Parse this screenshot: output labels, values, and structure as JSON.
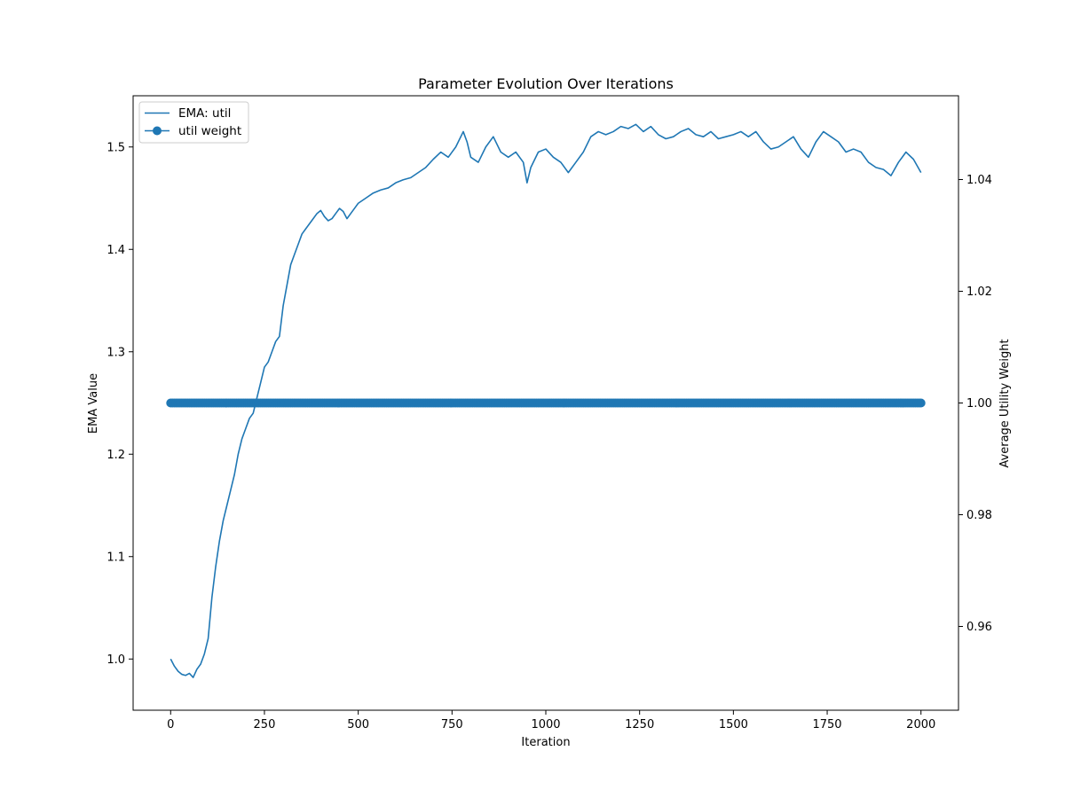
{
  "chart_data": {
    "type": "line",
    "title": "Parameter Evolution Over Iterations",
    "xlabel": "Iteration",
    "ylabel_left": "EMA Value",
    "ylabel_right": "Average Utility Weight",
    "xlim": [
      -100,
      2100
    ],
    "ylim_left": [
      0.95,
      1.55
    ],
    "ylim_right": [
      0.945,
      1.055
    ],
    "x_ticks": [
      0,
      250,
      500,
      750,
      1000,
      1250,
      1500,
      1750,
      2000
    ],
    "y_ticks_left": [
      1.0,
      1.1,
      1.2,
      1.3,
      1.4,
      1.5
    ],
    "y_ticks_right": [
      0.96,
      0.98,
      1.0,
      1.02,
      1.04
    ],
    "y_tick_format_left": 1,
    "y_tick_format_right": 2,
    "grid": false,
    "legend_position": "top-left",
    "series": [
      {
        "name": "EMA: util",
        "axis": "left",
        "style": "line",
        "color": "#1f77b4",
        "x": [
          0,
          10,
          20,
          30,
          40,
          50,
          60,
          70,
          80,
          90,
          100,
          110,
          120,
          130,
          140,
          150,
          160,
          170,
          180,
          190,
          200,
          210,
          220,
          230,
          240,
          250,
          260,
          270,
          280,
          290,
          300,
          310,
          320,
          330,
          340,
          350,
          360,
          370,
          380,
          390,
          400,
          410,
          420,
          430,
          440,
          450,
          460,
          470,
          480,
          490,
          500,
          520,
          540,
          560,
          580,
          600,
          620,
          640,
          660,
          680,
          700,
          720,
          740,
          760,
          780,
          790,
          800,
          820,
          840,
          860,
          880,
          900,
          920,
          940,
          950,
          960,
          980,
          1000,
          1020,
          1040,
          1060,
          1080,
          1100,
          1120,
          1140,
          1160,
          1180,
          1200,
          1220,
          1240,
          1260,
          1280,
          1300,
          1320,
          1340,
          1360,
          1380,
          1400,
          1420,
          1440,
          1460,
          1480,
          1500,
          1520,
          1540,
          1560,
          1580,
          1600,
          1620,
          1640,
          1660,
          1680,
          1700,
          1720,
          1740,
          1760,
          1780,
          1800,
          1820,
          1840,
          1860,
          1880,
          1900,
          1920,
          1940,
          1960,
          1980,
          2000
        ],
        "values": [
          1.0,
          0.993,
          0.988,
          0.985,
          0.984,
          0.986,
          0.982,
          0.99,
          0.995,
          1.005,
          1.02,
          1.06,
          1.09,
          1.115,
          1.135,
          1.15,
          1.165,
          1.18,
          1.2,
          1.215,
          1.225,
          1.235,
          1.24,
          1.255,
          1.27,
          1.285,
          1.29,
          1.3,
          1.31,
          1.315,
          1.345,
          1.365,
          1.385,
          1.395,
          1.405,
          1.415,
          1.42,
          1.425,
          1.43,
          1.435,
          1.438,
          1.432,
          1.428,
          1.43,
          1.435,
          1.44,
          1.437,
          1.43,
          1.435,
          1.44,
          1.445,
          1.45,
          1.455,
          1.458,
          1.46,
          1.465,
          1.468,
          1.47,
          1.475,
          1.48,
          1.488,
          1.495,
          1.49,
          1.5,
          1.515,
          1.505,
          1.49,
          1.485,
          1.5,
          1.51,
          1.495,
          1.49,
          1.495,
          1.485,
          1.465,
          1.48,
          1.495,
          1.498,
          1.49,
          1.485,
          1.475,
          1.485,
          1.495,
          1.51,
          1.515,
          1.512,
          1.515,
          1.52,
          1.518,
          1.522,
          1.515,
          1.52,
          1.512,
          1.508,
          1.51,
          1.515,
          1.518,
          1.512,
          1.51,
          1.515,
          1.508,
          1.51,
          1.512,
          1.515,
          1.51,
          1.515,
          1.505,
          1.498,
          1.5,
          1.505,
          1.51,
          1.498,
          1.49,
          1.505,
          1.515,
          1.51,
          1.505,
          1.495,
          1.498,
          1.495,
          1.485,
          1.48,
          1.478,
          1.472,
          1.485,
          1.495,
          1.488,
          1.475
        ]
      },
      {
        "name": "util weight",
        "axis": "right",
        "style": "line-marker",
        "color": "#1f77b4",
        "x_start": 0,
        "x_end": 2000,
        "x_step": 5,
        "constant_value": 1.0
      }
    ]
  }
}
